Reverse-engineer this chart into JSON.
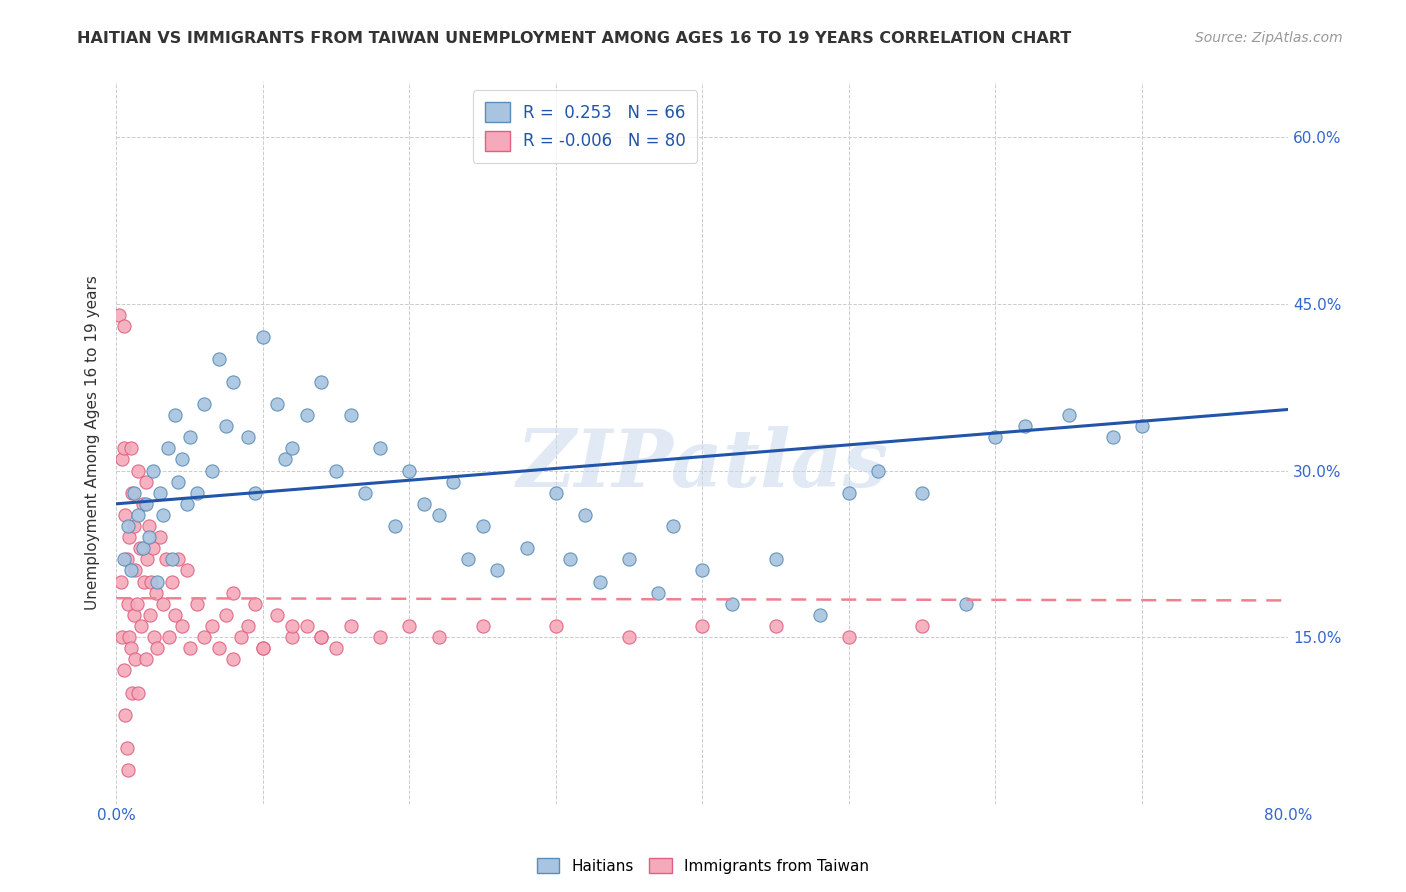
{
  "title": "HAITIAN VS IMMIGRANTS FROM TAIWAN UNEMPLOYMENT AMONG AGES 16 TO 19 YEARS CORRELATION CHART",
  "source": "Source: ZipAtlas.com",
  "ylabel": "Unemployment Among Ages 16 to 19 years",
  "xlim": [
    0,
    0.8
  ],
  "ylim": [
    0,
    0.65
  ],
  "x_ticks": [
    0.0,
    0.1,
    0.2,
    0.3,
    0.4,
    0.5,
    0.6,
    0.7,
    0.8
  ],
  "x_tick_labels": [
    "0.0%",
    "",
    "",
    "",
    "",
    "",
    "",
    "",
    "80.0%"
  ],
  "y_ticks": [
    0.0,
    0.15,
    0.3,
    0.45,
    0.6
  ],
  "right_y_tick_labels": [
    "",
    "15.0%",
    "30.0%",
    "45.0%",
    "60.0%"
  ],
  "legend_R_blue": " 0.253",
  "legend_N_blue": "66",
  "legend_R_pink": "-0.006",
  "legend_N_pink": "80",
  "blue_color": "#A8C4E0",
  "blue_edge_color": "#5B8DB8",
  "pink_color": "#F4AABB",
  "pink_edge_color": "#E06080",
  "trendline_blue_color": "#2255AA",
  "trendline_pink_color": "#F08090",
  "watermark": "ZIPatlas",
  "blue_trend_x0": 0.0,
  "blue_trend_y0": 0.27,
  "blue_trend_x1": 0.8,
  "blue_trend_y1": 0.355,
  "pink_trend_x0": 0.0,
  "pink_trend_y0": 0.185,
  "pink_trend_x1": 0.8,
  "pink_trend_y1": 0.183,
  "background_color": "#FFFFFF",
  "grid_color": "#CCCCCC",
  "title_color": "#333333",
  "right_tick_color": "#3366CC",
  "blue_scatter_x": [
    0.005,
    0.008,
    0.01,
    0.012,
    0.015,
    0.018,
    0.02,
    0.022,
    0.025,
    0.028,
    0.03,
    0.032,
    0.035,
    0.038,
    0.04,
    0.042,
    0.045,
    0.048,
    0.05,
    0.055,
    0.06,
    0.065,
    0.07,
    0.075,
    0.08,
    0.09,
    0.095,
    0.1,
    0.11,
    0.115,
    0.12,
    0.13,
    0.14,
    0.15,
    0.16,
    0.17,
    0.18,
    0.19,
    0.2,
    0.21,
    0.22,
    0.23,
    0.24,
    0.25,
    0.26,
    0.28,
    0.3,
    0.31,
    0.32,
    0.33,
    0.35,
    0.37,
    0.38,
    0.4,
    0.42,
    0.45,
    0.48,
    0.5,
    0.52,
    0.55,
    0.58,
    0.6,
    0.62,
    0.65,
    0.68,
    0.7
  ],
  "blue_scatter_y": [
    0.22,
    0.25,
    0.21,
    0.28,
    0.26,
    0.23,
    0.27,
    0.24,
    0.3,
    0.2,
    0.28,
    0.26,
    0.32,
    0.22,
    0.35,
    0.29,
    0.31,
    0.27,
    0.33,
    0.28,
    0.36,
    0.3,
    0.4,
    0.34,
    0.38,
    0.33,
    0.28,
    0.42,
    0.36,
    0.31,
    0.32,
    0.35,
    0.38,
    0.3,
    0.35,
    0.28,
    0.32,
    0.25,
    0.3,
    0.27,
    0.26,
    0.29,
    0.22,
    0.25,
    0.21,
    0.23,
    0.28,
    0.22,
    0.26,
    0.2,
    0.22,
    0.19,
    0.25,
    0.21,
    0.18,
    0.22,
    0.17,
    0.28,
    0.3,
    0.28,
    0.18,
    0.33,
    0.34,
    0.35,
    0.33,
    0.34
  ],
  "pink_scatter_x": [
    0.002,
    0.003,
    0.004,
    0.004,
    0.005,
    0.005,
    0.005,
    0.006,
    0.006,
    0.007,
    0.007,
    0.008,
    0.008,
    0.009,
    0.009,
    0.01,
    0.01,
    0.011,
    0.011,
    0.012,
    0.012,
    0.013,
    0.013,
    0.014,
    0.015,
    0.015,
    0.016,
    0.017,
    0.018,
    0.019,
    0.02,
    0.02,
    0.021,
    0.022,
    0.023,
    0.024,
    0.025,
    0.026,
    0.027,
    0.028,
    0.03,
    0.032,
    0.034,
    0.036,
    0.038,
    0.04,
    0.042,
    0.045,
    0.048,
    0.05,
    0.055,
    0.06,
    0.065,
    0.07,
    0.075,
    0.08,
    0.085,
    0.09,
    0.095,
    0.1,
    0.11,
    0.12,
    0.13,
    0.14,
    0.15,
    0.16,
    0.18,
    0.2,
    0.22,
    0.25,
    0.3,
    0.35,
    0.4,
    0.45,
    0.5,
    0.55,
    0.1,
    0.08,
    0.12,
    0.14
  ],
  "pink_scatter_y": [
    0.44,
    0.2,
    0.31,
    0.15,
    0.43,
    0.32,
    0.12,
    0.26,
    0.08,
    0.22,
    0.05,
    0.18,
    0.03,
    0.15,
    0.24,
    0.32,
    0.14,
    0.28,
    0.1,
    0.25,
    0.17,
    0.21,
    0.13,
    0.18,
    0.3,
    0.1,
    0.23,
    0.16,
    0.27,
    0.2,
    0.29,
    0.13,
    0.22,
    0.25,
    0.17,
    0.2,
    0.23,
    0.15,
    0.19,
    0.14,
    0.24,
    0.18,
    0.22,
    0.15,
    0.2,
    0.17,
    0.22,
    0.16,
    0.21,
    0.14,
    0.18,
    0.15,
    0.16,
    0.14,
    0.17,
    0.19,
    0.15,
    0.16,
    0.18,
    0.14,
    0.17,
    0.15,
    0.16,
    0.15,
    0.14,
    0.16,
    0.15,
    0.16,
    0.15,
    0.16,
    0.16,
    0.15,
    0.16,
    0.16,
    0.15,
    0.16,
    0.14,
    0.13,
    0.16,
    0.15
  ]
}
